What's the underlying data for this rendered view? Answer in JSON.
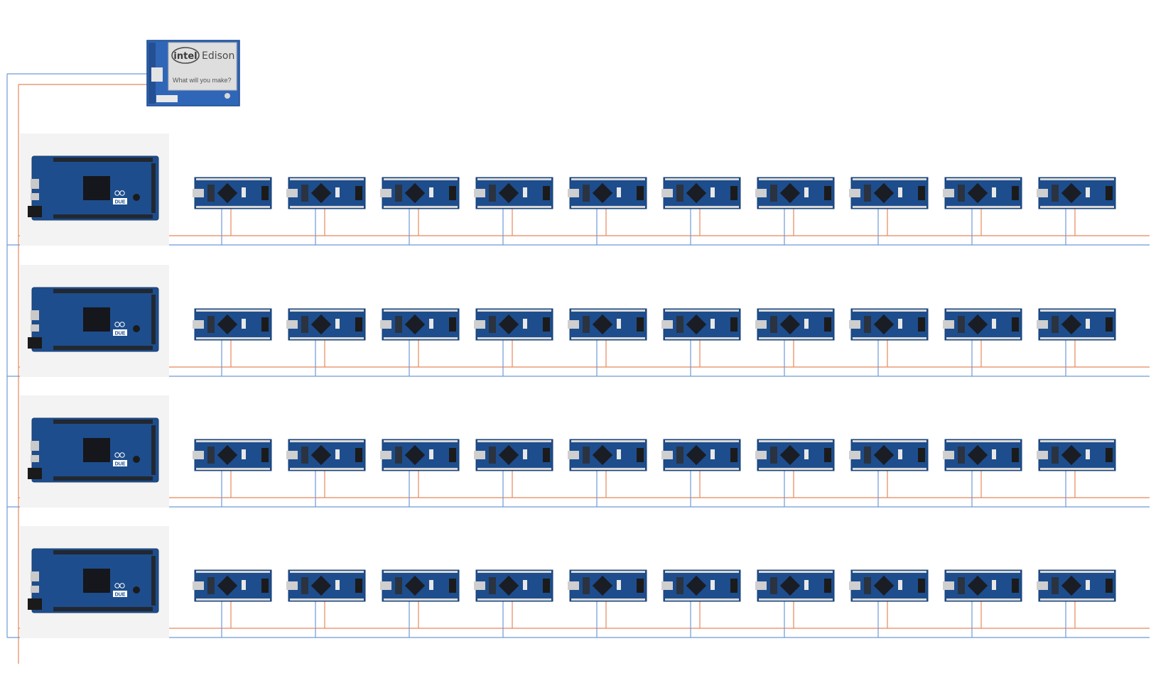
{
  "edison": {
    "brand": "intel",
    "product": "Edison",
    "tagline": "What will you make?"
  },
  "due": {
    "label": "DUE",
    "logo": "infinity-icon"
  },
  "rows": [
    {
      "id": 1,
      "nano_count": 10
    },
    {
      "id": 2,
      "nano_count": 10
    },
    {
      "id": 3,
      "nano_count": 10
    },
    {
      "id": 4,
      "nano_count": 10
    }
  ],
  "colors": {
    "bus_blue": "#6e9ad8",
    "bus_orange": "#e8875a",
    "board_blue": "#1d4d8c",
    "board_dark": "#163e72",
    "board_panel": "#f3f3f3",
    "edison_board": "#2f66b8",
    "edison_shield": "#dcdcdc"
  }
}
